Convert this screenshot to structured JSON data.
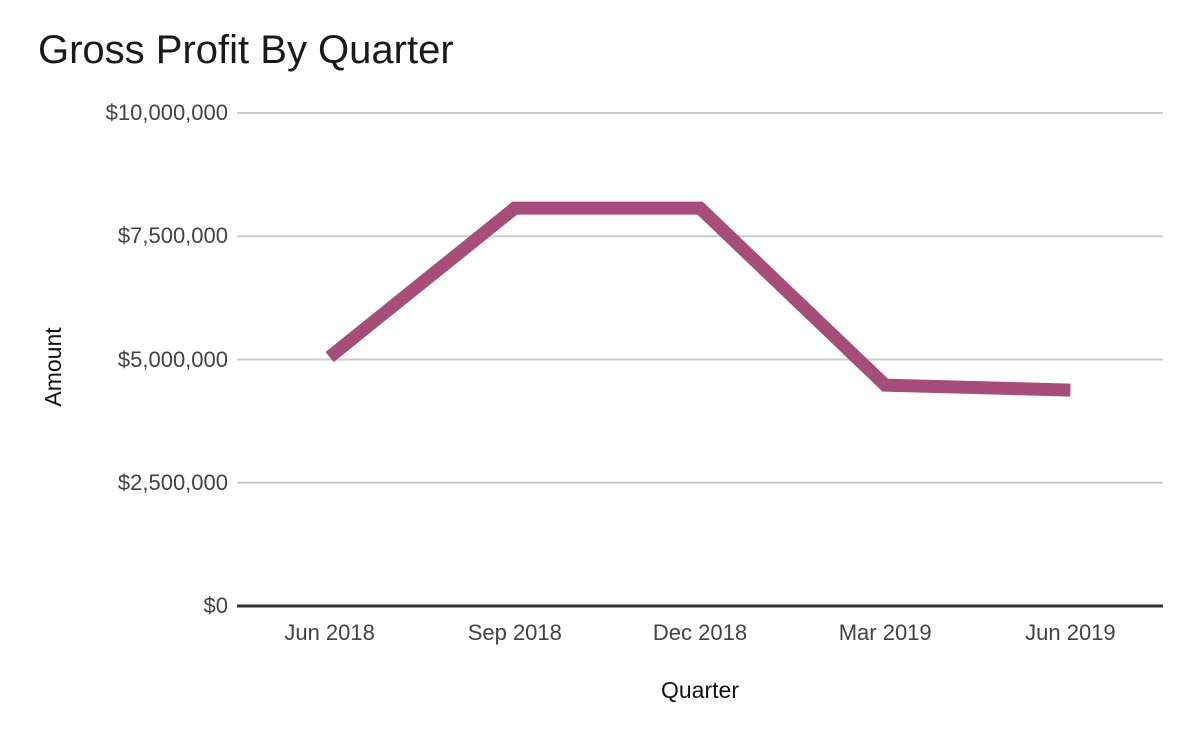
{
  "chart_data": {
    "type": "line",
    "title": "Gross Profit By Quarter",
    "xlabel": "Quarter",
    "ylabel": "Amount",
    "categories": [
      "Jun 2018",
      "Sep 2018",
      "Dec 2018",
      "Mar 2019",
      "Jun 2019"
    ],
    "series": [
      {
        "values": [
          5050000,
          8070000,
          8070000,
          4480000,
          4380000
        ]
      }
    ],
    "ylim": [
      0,
      10000000
    ],
    "y_tick_values": [
      0,
      2500000,
      5000000,
      7500000,
      10000000
    ],
    "y_tick_labels": [
      "$0",
      "$2,500,000",
      "$5,000,000",
      "$7,500,000",
      "$10,000,000"
    ],
    "grid": true,
    "legend_position": "none",
    "colors": {
      "line": "#a64d79",
      "gridline": "#cccccc",
      "axis_line": "#333333",
      "tick_text": "#424242",
      "title_text": "#1a1a1a",
      "axis_title_text": "#111111",
      "background": "#ffffff"
    }
  }
}
